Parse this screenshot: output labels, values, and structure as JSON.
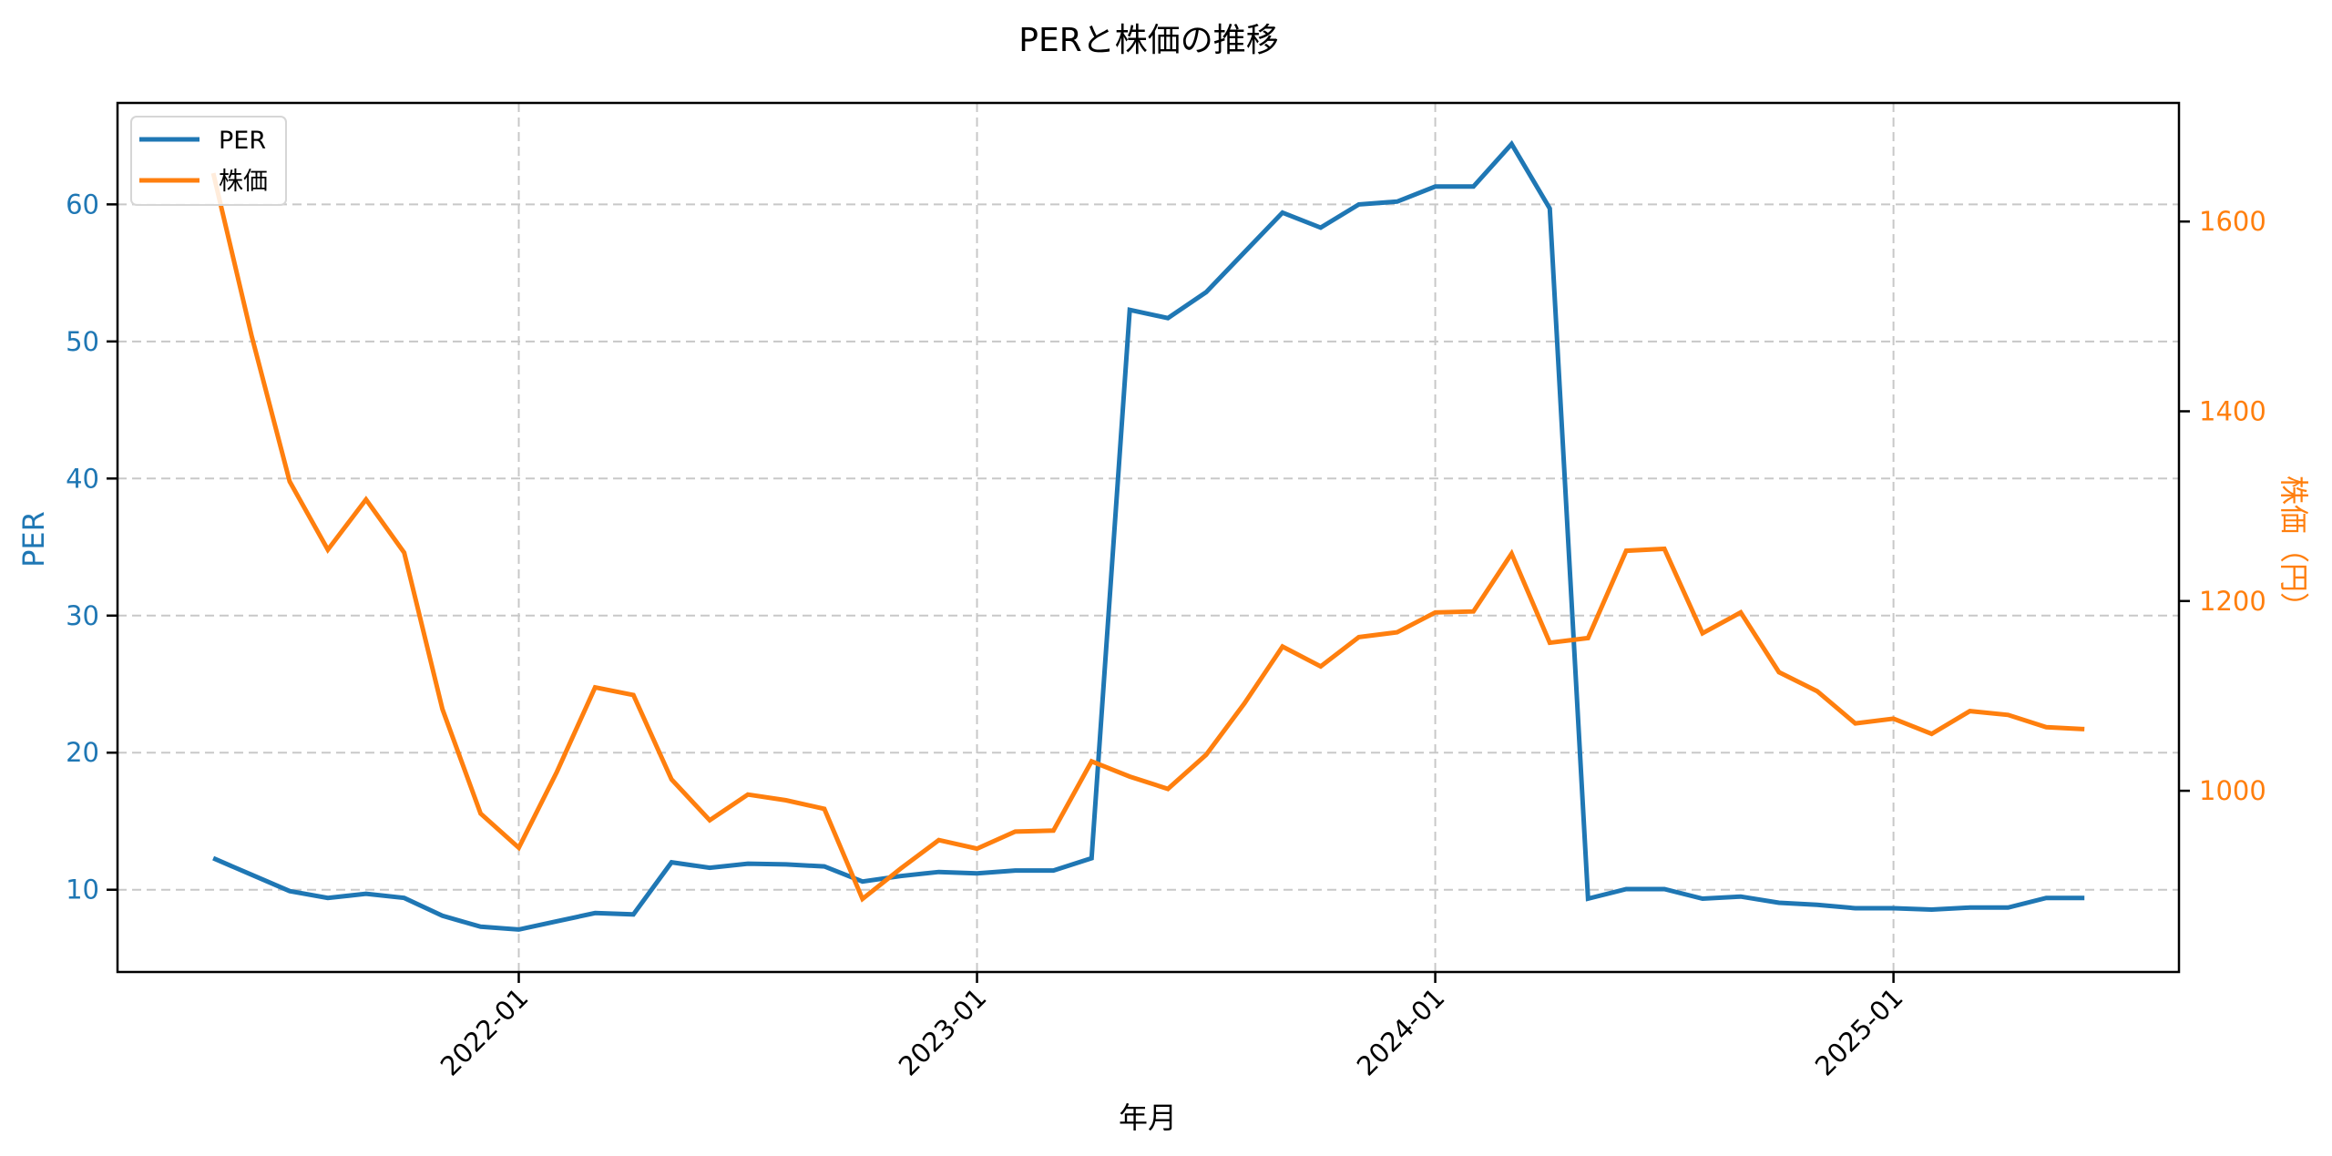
{
  "chart_data": {
    "type": "line",
    "title": "PERと株価の推移",
    "xlabel": "年月",
    "ylabel": "PER",
    "ylabel_right": "株価（円）",
    "x": [
      "2021-05",
      "2021-06",
      "2021-07",
      "2021-08",
      "2021-09",
      "2021-10",
      "2021-11",
      "2021-12",
      "2022-01",
      "2022-02",
      "2022-03",
      "2022-04",
      "2022-05",
      "2022-06",
      "2022-07",
      "2022-08",
      "2022-09",
      "2022-10",
      "2022-11",
      "2022-12",
      "2023-01",
      "2023-02",
      "2023-03",
      "2023-04",
      "2023-05",
      "2023-06",
      "2023-07",
      "2023-08",
      "2023-09",
      "2023-10",
      "2023-11",
      "2023-12",
      "2024-01",
      "2024-02",
      "2024-03",
      "2024-04",
      "2024-05",
      "2024-06",
      "2024-07",
      "2024-08",
      "2024-09",
      "2024-10",
      "2024-11",
      "2024-12",
      "2025-01",
      "2025-02",
      "2025-03",
      "2025-04",
      "2025-05",
      "2025-06"
    ],
    "x_ticks": [
      "2022-01",
      "2023-01",
      "2024-01",
      "2025-01"
    ],
    "x_tick_rotation": 45,
    "series": [
      {
        "name": "PER",
        "axis": "left",
        "color": "#1f77b4",
        "values": [
          12.3,
          11.1,
          9.9,
          9.4,
          9.7,
          9.4,
          8.1,
          7.3,
          7.1,
          7.7,
          8.3,
          8.2,
          12.0,
          11.6,
          11.9,
          11.85,
          11.7,
          10.6,
          11.0,
          11.3,
          11.2,
          11.4,
          11.4,
          12.3,
          52.3,
          51.7,
          53.6,
          56.5,
          59.4,
          58.3,
          60.0,
          60.2,
          61.3,
          61.3,
          64.4,
          59.7,
          9.35,
          10.05,
          10.05,
          9.35,
          9.5,
          9.05,
          8.9,
          8.65,
          8.65,
          8.55,
          8.7,
          8.7,
          9.4,
          9.4
        ]
      },
      {
        "name": "株価",
        "axis": "right",
        "color": "#ff7f0e",
        "values": [
          1651,
          1480,
          1326,
          1254,
          1307,
          1251,
          1086,
          976,
          940,
          1020,
          1109,
          1101,
          1012,
          969,
          996,
          990,
          981,
          886,
          918,
          948,
          939,
          957,
          958,
          1031,
          1015,
          1002,
          1038,
          1092,
          1152,
          1131,
          1162,
          1167,
          1188,
          1189,
          1250,
          1156,
          1161,
          1253,
          1255,
          1166,
          1188,
          1125,
          1105,
          1071,
          1076,
          1060,
          1084,
          1080,
          1067,
          1065
        ]
      }
    ],
    "ylim": [
      4.0,
      67.4
    ],
    "y_ticks": [
      10,
      20,
      30,
      40,
      50,
      60
    ],
    "ylim_right": [
      809,
      1725
    ],
    "y_ticks_right": [
      1000,
      1200,
      1400,
      1600
    ],
    "grid": true,
    "legend": {
      "position": "upper left",
      "entries": [
        "PER",
        "株価"
      ]
    }
  }
}
